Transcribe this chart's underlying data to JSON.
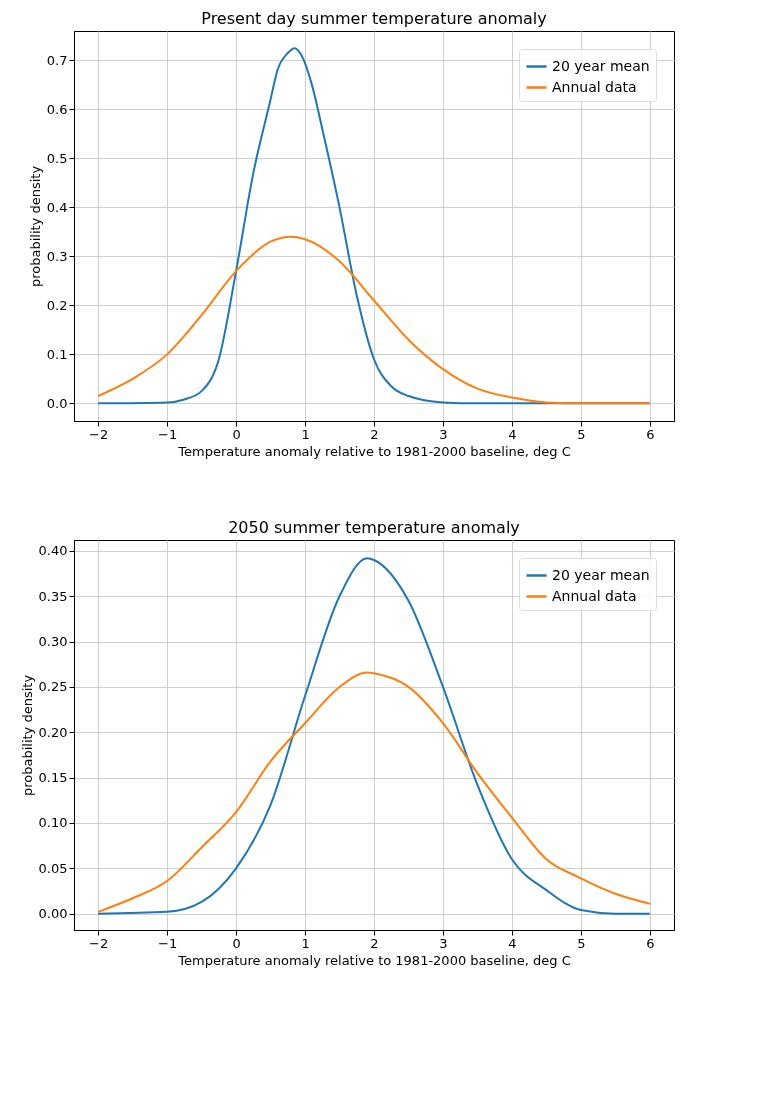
{
  "chart_data": [
    {
      "type": "line",
      "title": "Present day summer temperature anomaly",
      "xlabel": "Temperature anomaly relative to 1981-2000 baseline, deg C",
      "ylabel": "probability density",
      "xlim": [
        -2.35,
        6.35
      ],
      "xticks": [
        -2,
        -1,
        0,
        1,
        2,
        3,
        4,
        5,
        6
      ],
      "ylim": [
        -0.036,
        0.76
      ],
      "yticks": [
        {
          "value": 0,
          "label": "0.0"
        },
        {
          "value": 0.1,
          "label": "0.1"
        },
        {
          "value": 0.2,
          "label": "0.2"
        },
        {
          "value": 0.3,
          "label": "0.3"
        },
        {
          "value": 0.4,
          "label": "0.4"
        },
        {
          "value": 0.5,
          "label": "0.5"
        },
        {
          "value": 0.6,
          "label": "0.6"
        },
        {
          "value": 0.7,
          "label": "0.7"
        }
      ],
      "grid": true,
      "legend": "top right",
      "series": [
        {
          "name": "20 year mean",
          "color": "#1f77b4",
          "x": [
            -2,
            -1,
            -0.75,
            -0.5,
            -0.25,
            0,
            0.25,
            0.5,
            0.6,
            0.75,
            0.85,
            0.95,
            1.1,
            1.25,
            1.5,
            1.75,
            2,
            2.25,
            2.5,
            3,
            3.5,
            6
          ],
          "values": [
            0,
            0.002,
            0.008,
            0.025,
            0.09,
            0.27,
            0.47,
            0.62,
            0.68,
            0.715,
            0.725,
            0.71,
            0.65,
            0.56,
            0.4,
            0.22,
            0.09,
            0.035,
            0.015,
            0.002,
            0,
            0
          ]
        },
        {
          "name": "Annual data",
          "color": "#ff7f0e",
          "x": [
            -2,
            -1.5,
            -1,
            -0.5,
            0,
            0.5,
            0.8,
            1,
            1.5,
            2,
            2.5,
            3,
            3.5,
            4,
            4.5,
            5,
            6
          ],
          "values": [
            0.015,
            0.05,
            0.1,
            0.18,
            0.27,
            0.33,
            0.34,
            0.335,
            0.29,
            0.21,
            0.13,
            0.07,
            0.03,
            0.012,
            0.002,
            0,
            0
          ]
        }
      ]
    },
    {
      "type": "line",
      "title": "2050 summer temperature anomaly",
      "xlabel": "Temperature anomaly relative to 1981-2000 baseline, deg C",
      "ylabel": "probability density",
      "xlim": [
        -2.35,
        6.35
      ],
      "xticks": [
        -2,
        -1,
        0,
        1,
        2,
        3,
        4,
        5,
        6
      ],
      "ylim": [
        -0.018,
        0.412
      ],
      "yticks": [
        {
          "value": 0,
          "label": "0.00"
        },
        {
          "value": 0.05,
          "label": "0.05"
        },
        {
          "value": 0.1,
          "label": "0.10"
        },
        {
          "value": 0.15,
          "label": "0.15"
        },
        {
          "value": 0.2,
          "label": "0.20"
        },
        {
          "value": 0.25,
          "label": "0.25"
        },
        {
          "value": 0.3,
          "label": "0.30"
        },
        {
          "value": 0.35,
          "label": "0.35"
        },
        {
          "value": 0.4,
          "label": "0.40"
        }
      ],
      "grid": true,
      "legend": "top right",
      "series": [
        {
          "name": "20 year mean",
          "color": "#1f77b4",
          "x": [
            -2,
            -1,
            -0.5,
            0,
            0.5,
            1,
            1.5,
            1.9,
            2,
            2.5,
            3,
            3.5,
            4,
            4.5,
            5,
            5.5,
            6
          ],
          "values": [
            0,
            0.002,
            0.013,
            0.05,
            0.12,
            0.24,
            0.35,
            0.392,
            0.39,
            0.345,
            0.25,
            0.142,
            0.06,
            0.026,
            0.004,
            0,
            0
          ]
        },
        {
          "name": "Annual data",
          "color": "#ff7f0e",
          "x": [
            -2,
            -1.5,
            -1,
            -0.5,
            0,
            0.5,
            1,
            1.5,
            1.9,
            2,
            2.5,
            3,
            3.5,
            4,
            4.5,
            5,
            5.5,
            6
          ],
          "values": [
            0.002,
            0.017,
            0.036,
            0.073,
            0.112,
            0.168,
            0.21,
            0.25,
            0.266,
            0.265,
            0.25,
            0.21,
            0.155,
            0.106,
            0.06,
            0.039,
            0.022,
            0.011
          ]
        }
      ]
    }
  ]
}
